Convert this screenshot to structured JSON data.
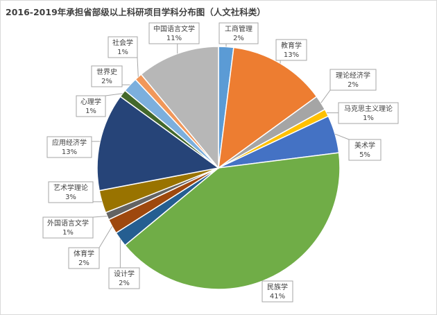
{
  "chart_data": {
    "type": "pie",
    "title": "2016-2019年承担省部级以上科研项目学科分布图（人文社科类）",
    "series": [
      {
        "name": "工商管理",
        "percent_label": "2%",
        "value": 2,
        "color": "#5b9bd5"
      },
      {
        "name": "教育学",
        "percent_label": "13%",
        "value": 13,
        "color": "#ed7d31"
      },
      {
        "name": "理论经济学",
        "percent_label": "2%",
        "value": 2,
        "color": "#a5a5a5"
      },
      {
        "name": "马克思主义理论",
        "percent_label": "1%",
        "value": 1,
        "color": "#ffc000"
      },
      {
        "name": "美术学",
        "percent_label": "5%",
        "value": 5,
        "color": "#4472c4"
      },
      {
        "name": "民族学",
        "percent_label": "41%",
        "value": 41,
        "color": "#70ad47"
      },
      {
        "name": "设计学",
        "percent_label": "2%",
        "value": 2,
        "color": "#255e91"
      },
      {
        "name": "体育学",
        "percent_label": "2%",
        "value": 2,
        "color": "#9e480e"
      },
      {
        "name": "外国语言文学",
        "percent_label": "1%",
        "value": 1,
        "color": "#636363"
      },
      {
        "name": "艺术学理论",
        "percent_label": "3%",
        "value": 3,
        "color": "#997300"
      },
      {
        "name": "应用经济学",
        "percent_label": "13%",
        "value": 13,
        "color": "#264478"
      },
      {
        "name": "心理学",
        "percent_label": "1%",
        "value": 1,
        "color": "#43682b"
      },
      {
        "name": "世界史",
        "percent_label": "2%",
        "value": 2,
        "color": "#7cafdd"
      },
      {
        "name": "社会学",
        "percent_label": "1%",
        "value": 1,
        "color": "#f1975a"
      },
      {
        "name": "中国语言文学",
        "percent_label": "11%",
        "value": 11,
        "color": "#b7b7b7"
      }
    ]
  }
}
